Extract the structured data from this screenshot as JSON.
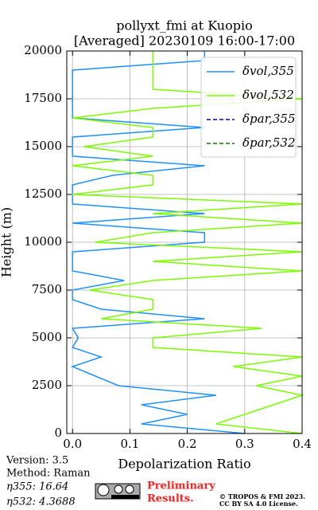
{
  "chart_data": {
    "type": "line",
    "title": [
      "pollyxt_fmi at Kuopio",
      "[Averaged] 20230109 16:00-17:00"
    ],
    "x_label": "Depolarization Ratio",
    "y_label": "Height (m)",
    "y": [
      0,
      500,
      1000,
      1500,
      2000,
      2500,
      3000,
      3500,
      4000,
      4500,
      5000,
      5500,
      6000,
      6500,
      7000,
      7500,
      8000,
      8500,
      9000,
      9500,
      10000,
      10500,
      11000,
      11500,
      12000,
      12500,
      13000,
      13500,
      14000,
      14500,
      15000,
      15500,
      16000,
      16500,
      17000,
      17500,
      18000,
      18500,
      19000,
      19500,
      20000
    ],
    "series": [
      {
        "name": "δvol,355",
        "color": "#1e90ff",
        "dash": false,
        "values": [
          0.3,
          0.12,
          0.2,
          0.12,
          0.25,
          0.08,
          0.04,
          0.0,
          0.05,
          0.0,
          0.01,
          0.0,
          0.23,
          0.05,
          0.0,
          0.0,
          0.09,
          0.0,
          0.0,
          0.0,
          0.23,
          0.23,
          0.0,
          0.23,
          0.0,
          0.0,
          0.0,
          0.07,
          0.23,
          0.0,
          0.0,
          0.0,
          0.23,
          0.0,
          0.0,
          0.0,
          0.0,
          0.0,
          0.0,
          0.23,
          0.23
        ]
      },
      {
        "name": "δvol,532",
        "color": "#7cfc00",
        "dash": false,
        "values": [
          0.4,
          0.25,
          0.3,
          0.35,
          0.4,
          0.32,
          0.4,
          0.28,
          0.4,
          0.14,
          0.14,
          0.33,
          0.05,
          0.14,
          0.14,
          0.03,
          0.14,
          0.4,
          0.14,
          0.4,
          0.04,
          0.14,
          0.4,
          0.14,
          0.4,
          0.0,
          0.14,
          0.14,
          0.0,
          0.14,
          0.02,
          0.14,
          0.14,
          0.0,
          0.14,
          0.4,
          0.14,
          0.14,
          0.14,
          0.14,
          0.14
        ]
      },
      {
        "name": "δpar,355",
        "color": "#0000cd",
        "dash": true,
        "values": [
          null,
          null,
          null,
          null,
          null,
          null,
          null,
          null,
          null,
          null,
          null,
          null,
          null,
          null,
          null,
          null,
          null,
          null,
          null,
          null,
          null,
          null,
          null,
          null,
          null,
          null,
          null,
          null,
          null,
          null,
          null,
          null,
          null,
          null,
          null,
          null,
          null,
          null,
          null,
          null,
          null
        ]
      },
      {
        "name": "δpar,532",
        "color": "#008000",
        "dash": true,
        "values": [
          null,
          null,
          null,
          null,
          null,
          null,
          null,
          null,
          null,
          null,
          null,
          null,
          null,
          null,
          null,
          null,
          null,
          null,
          null,
          null,
          null,
          null,
          null,
          null,
          null,
          null,
          null,
          null,
          null,
          null,
          null,
          null,
          null,
          null,
          null,
          null,
          null,
          null,
          null,
          null,
          null
        ]
      }
    ],
    "xlim": [
      -0.01,
      0.4
    ],
    "xticks": [
      {
        "value": 0,
        "label": "0.0"
      },
      0.1,
      0.2,
      0.3,
      0.4
    ],
    "ylim": [
      0,
      20000
    ],
    "yticks": [
      0,
      2500,
      5000,
      7500,
      10000,
      12500,
      15000,
      17500,
      20000
    ],
    "grid": true,
    "legend": "upper right"
  },
  "footer": {
    "version": "Version: 3.5",
    "method": "Method: Raman",
    "eta355": "η355:  16.64",
    "eta532": "η532: 4.3688",
    "preliminary": [
      "Preliminary",
      "Results."
    ],
    "copyright": [
      "© TROPOS & FMI 2023.",
      "CC BY SA 4.0 License."
    ]
  }
}
